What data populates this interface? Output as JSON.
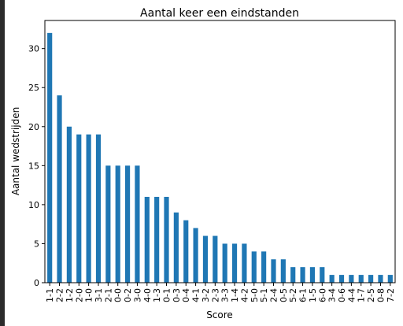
{
  "chart_data": {
    "type": "bar",
    "title": "Aantal keer een eindstanden",
    "xlabel": "Score",
    "ylabel": "Aantal wedstrijden",
    "categories": [
      "1-1",
      "2-2",
      "1-2",
      "2-0",
      "1-0",
      "3-1",
      "2-1",
      "0-0",
      "0-2",
      "3-0",
      "4-0",
      "1-3",
      "0-1",
      "0-3",
      "0-4",
      "4-1",
      "3-2",
      "2-3",
      "3-3",
      "1-4",
      "4-2",
      "5-0",
      "5-1",
      "2-4",
      "0-5",
      "5-2",
      "6-1",
      "1-5",
      "6-0",
      "3-4",
      "0-6",
      "4-4",
      "1-7",
      "2-5",
      "0-8",
      "7-2"
    ],
    "values": [
      32,
      24,
      20,
      19,
      19,
      19,
      15,
      15,
      15,
      15,
      11,
      11,
      11,
      9,
      8,
      7,
      6,
      6,
      5,
      5,
      5,
      4,
      4,
      3,
      3,
      2,
      2,
      2,
      2,
      1,
      1,
      1,
      1,
      1,
      1,
      1
    ],
    "ylim": [
      0,
      33.6
    ],
    "yticks": [
      0,
      5,
      10,
      15,
      20,
      25,
      30
    ],
    "bar_color": "#1f77b4",
    "grid": false,
    "legend": "none"
  }
}
